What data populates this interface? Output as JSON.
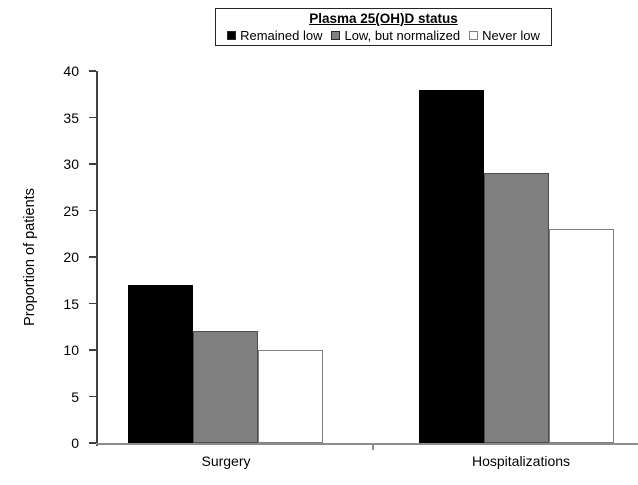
{
  "chart_data": {
    "type": "bar",
    "legend_title": "Plasma 25(OH)D status",
    "legend_position": "top",
    "categories": [
      "Surgery",
      "Hospitalizations"
    ],
    "series": [
      {
        "name": "Remained low",
        "color": "#000000",
        "border_color": "#000000",
        "values": [
          17,
          38
        ]
      },
      {
        "name": "Low, but normalized",
        "color": "#808080",
        "border_color": "#4d4d4d",
        "values": [
          12,
          29
        ]
      },
      {
        "name": "Never low",
        "color": "#ffffff",
        "border_color": "#808080",
        "values": [
          10,
          23
        ]
      }
    ],
    "ylabel": "Proportion of patients",
    "ylim": [
      0,
      40
    ],
    "ytick_step": 5,
    "yticks": [
      0,
      5,
      10,
      15,
      20,
      25,
      30,
      35,
      40
    ],
    "grid": false,
    "axis_colors": {
      "y_axis": "#404040",
      "x_axis": "#8c8c8c"
    }
  }
}
